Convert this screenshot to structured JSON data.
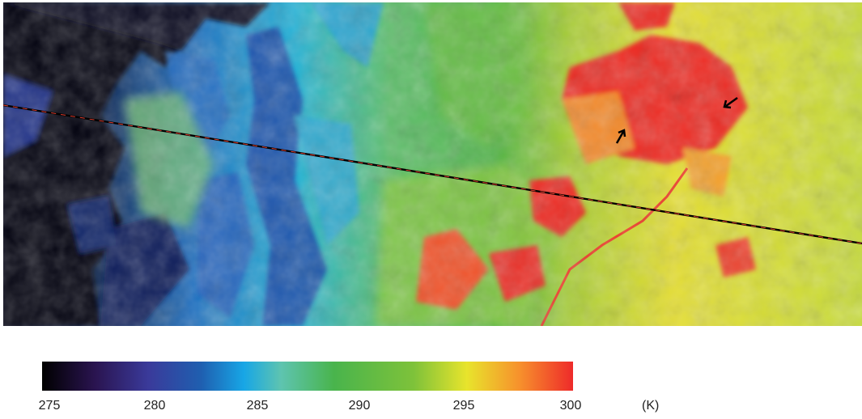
{
  "colorbar": {
    "min": 275,
    "max": 300,
    "ticks": [
      "275",
      "280",
      "285",
      "290",
      "295",
      "300"
    ],
    "unit": "(K)",
    "colors": [
      "#000000",
      "#3a1a6e",
      "#1f4fa8",
      "#1ab6e8",
      "#6cc04f",
      "#3fb04a",
      "#b8d432",
      "#f2e52a",
      "#f79b2b",
      "#ee2a2a"
    ]
  },
  "map": {
    "annotations": [
      "arrow-icon",
      "arrow-icon"
    ],
    "transect": "dashed-line"
  }
}
